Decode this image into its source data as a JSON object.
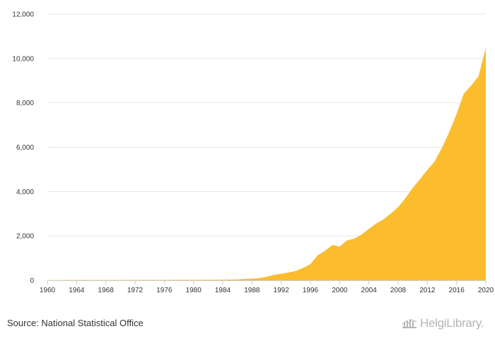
{
  "chart_data": {
    "type": "area",
    "x": [
      1960,
      1961,
      1962,
      1963,
      1964,
      1965,
      1966,
      1967,
      1968,
      1969,
      1970,
      1971,
      1972,
      1973,
      1974,
      1975,
      1976,
      1977,
      1978,
      1979,
      1980,
      1981,
      1982,
      1983,
      1984,
      1985,
      1986,
      1987,
      1988,
      1989,
      1990,
      1991,
      1992,
      1993,
      1994,
      1995,
      1996,
      1997,
      1998,
      1999,
      2000,
      2001,
      2002,
      2003,
      2004,
      2005,
      2006,
      2007,
      2008,
      2009,
      2010,
      2011,
      2012,
      2013,
      2014,
      2015,
      2016,
      2017,
      2018,
      2019,
      2020
    ],
    "series": [
      {
        "values": [
          10,
          10,
          10,
          11,
          11,
          11,
          12,
          12,
          12,
          13,
          13,
          14,
          14,
          15,
          15,
          16,
          16,
          17,
          18,
          19,
          20,
          21,
          22,
          24,
          27,
          30,
          40,
          60,
          70,
          100,
          160,
          240,
          300,
          350,
          420,
          560,
          730,
          1130,
          1330,
          1590,
          1520,
          1800,
          1880,
          2060,
          2320,
          2560,
          2750,
          3010,
          3300,
          3700,
          4170,
          4560,
          4980,
          5360,
          5980,
          6680,
          7500,
          8420,
          8780,
          9200,
          10480
        ]
      }
    ],
    "color": "#fbbd2d",
    "xlabel": "",
    "ylabel": "",
    "ylim": [
      0,
      12000
    ],
    "xlim": [
      1960,
      2020
    ],
    "y_ticks": [
      0,
      2000,
      4000,
      6000,
      8000,
      10000,
      12000
    ],
    "y_tick_labels": [
      "0",
      "2,000",
      "4,000",
      "6,000",
      "8,000",
      "10,000",
      "12,000"
    ],
    "x_ticks": [
      1960,
      1964,
      1968,
      1972,
      1976,
      1980,
      1984,
      1988,
      1992,
      1996,
      2000,
      2004,
      2008,
      2012,
      2016,
      2020
    ],
    "x_tick_labels": [
      "1960",
      "1964",
      "1968",
      "1972",
      "1976",
      "1980",
      "1984",
      "1988",
      "1992",
      "1996",
      "2000",
      "2004",
      "2008",
      "2012",
      "2016",
      "2020"
    ],
    "grid": true,
    "legend": "none"
  },
  "footer": {
    "source": "Source: National Statistical Office",
    "logo_text": "HelgiLibrary."
  },
  "colors": {
    "grid": "#e6e6e6",
    "axis": "#cccccc",
    "text": "#333333",
    "logo": "#b5b5b5"
  }
}
